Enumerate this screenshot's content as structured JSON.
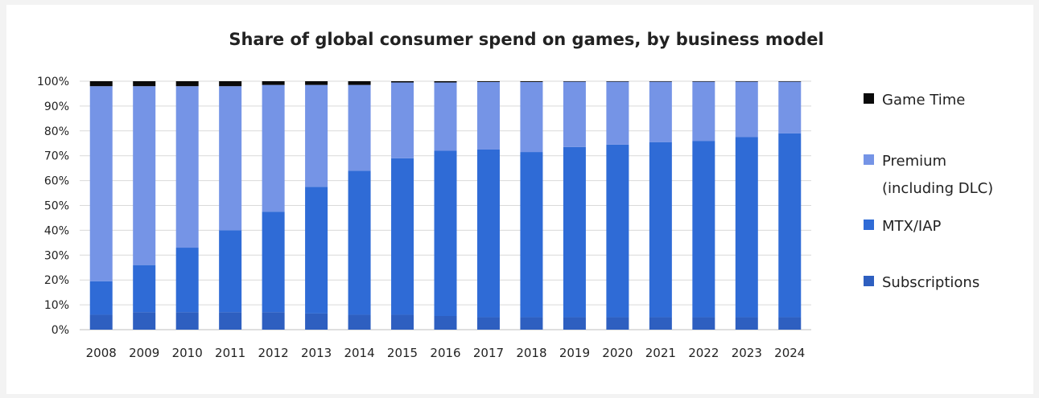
{
  "chart_data": {
    "type": "bar",
    "stacked": true,
    "title": "Share of global consumer spend on games, by business model",
    "xlabel": "",
    "ylabel": "",
    "ylim": [
      0,
      100
    ],
    "y_ticks": [
      "0%",
      "10%",
      "20%",
      "30%",
      "40%",
      "50%",
      "60%",
      "70%",
      "80%",
      "90%",
      "100%"
    ],
    "grid": true,
    "legend_position": "right",
    "categories": [
      "2008",
      "2009",
      "2010",
      "2011",
      "2012",
      "2013",
      "2014",
      "2015",
      "2016",
      "2017",
      "2018",
      "2019",
      "2020",
      "2021",
      "2022",
      "2023",
      "2024"
    ],
    "series": [
      {
        "name": "Subscriptions",
        "color": "#2e5fc0",
        "values": [
          6,
          7,
          7,
          7,
          7,
          6.5,
          6,
          6,
          5.5,
          5,
          5,
          5,
          5,
          5,
          5,
          5,
          5
        ]
      },
      {
        "name": "MTX/IAP",
        "color": "#2f6bd6",
        "values": [
          13.5,
          19,
          26,
          33,
          40.5,
          51,
          58,
          63,
          66.5,
          67.5,
          66.5,
          68.5,
          69.5,
          70.5,
          71,
          72.5,
          74
        ]
      },
      {
        "name": "Premium\n(including DLC)",
        "color": "#7594e6",
        "values": [
          78.5,
          72,
          65,
          58,
          51,
          41,
          34.5,
          30.5,
          27.5,
          27.2,
          28.2,
          26.3,
          25.3,
          24.3,
          23.8,
          22.3,
          20.8
        ]
      },
      {
        "name": "Game Time",
        "color": "#0a0a0a",
        "values": [
          2,
          2,
          2,
          2,
          1.5,
          1.5,
          1.5,
          0.5,
          0.5,
          0.3,
          0.3,
          0.2,
          0.2,
          0.2,
          0.2,
          0.2,
          0.2
        ]
      }
    ],
    "legend_order": [
      "Game Time",
      "Premium\n(including DLC)",
      "MTX/IAP",
      "Subscriptions"
    ]
  }
}
